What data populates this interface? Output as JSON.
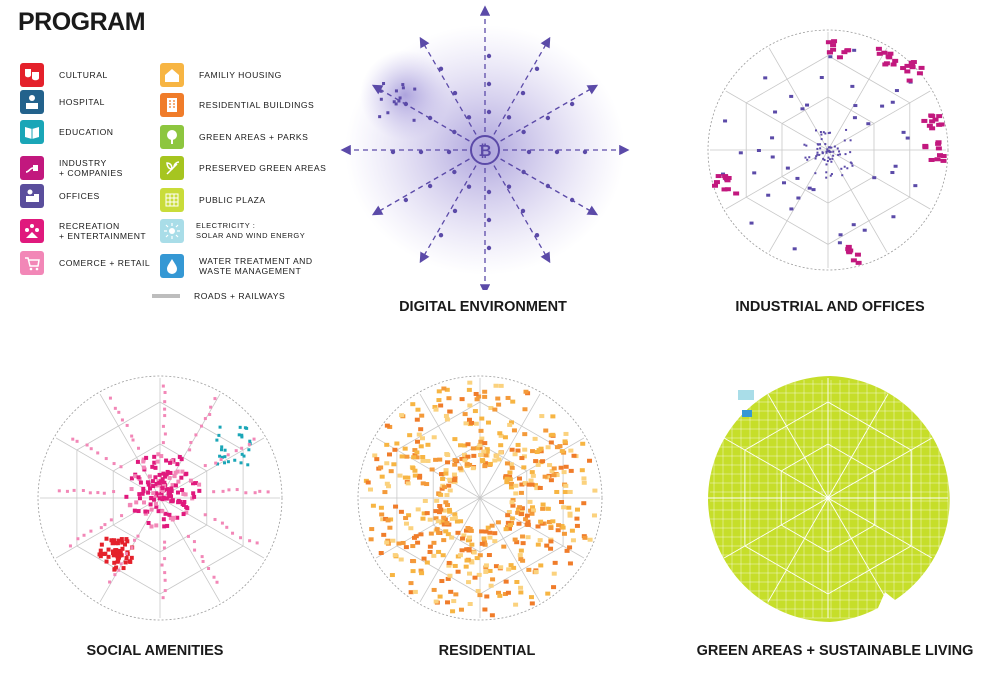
{
  "page": {
    "title": "PROGRAM"
  },
  "legend": {
    "items": [
      {
        "label": "CULTURAL",
        "icon": "theater-masks-icon",
        "color": "#e4212b"
      },
      {
        "label": "HOSPITAL",
        "icon": "hospital-icon",
        "color": "#23628c"
      },
      {
        "label": "EDUCATION",
        "icon": "book-icon",
        "color": "#1aa6b7"
      },
      {
        "label": "INDUSTRY\n+ COMPANIES",
        "icon": "plug-icon",
        "color": "#c2187e"
      },
      {
        "label": "OFFICES",
        "icon": "office-desk-icon",
        "color": "#5a4e9c"
      },
      {
        "label": "RECREATION\n+ ENTERTAINMENT",
        "icon": "people-group-icon",
        "color": "#e0197d"
      },
      {
        "label": "COMERCE + RETAIL",
        "icon": "shopping-cart-icon",
        "color": "#f287b7"
      },
      {
        "label": "FAMILIY HOUSING",
        "icon": "house-icon",
        "color": "#f7b543"
      },
      {
        "label": "RESIDENTIAL BUILDINGS",
        "icon": "building-icon",
        "color": "#f07c2a"
      },
      {
        "label": "GREEN AREAS + PARKS",
        "icon": "tree-icon",
        "color": "#8dc63f"
      },
      {
        "label": "PRESERVED GREEN AREAS",
        "icon": "plant-icon",
        "color": "#a6c520"
      },
      {
        "label": "PUBLIC PLAZA",
        "icon": "grid-icon",
        "color": "#c9dc3a"
      },
      {
        "label": "ELECTRICITY :\nSOLAR AND WIND ENERGY",
        "icon": "sun-icon",
        "color": "#a9dde8"
      },
      {
        "label": "WATER TREATMENT AND\nWASTE MANAGEMENT",
        "icon": "water-drop-icon",
        "color": "#3598d4"
      },
      {
        "label": "ROADS + RAILWAYS",
        "icon": "road-line",
        "color": "#bdbdbd"
      }
    ]
  },
  "diagrams": [
    {
      "title": "DIGITAL ENVIRONMENT",
      "key": "digital",
      "color": "#5b4aa8",
      "center_icon": "bitcoin-icon"
    },
    {
      "title": "INDUSTRIAL AND OFFICES",
      "key": "industrial",
      "color": "#c2187e"
    },
    {
      "title": "SOCIAL AMENITIES",
      "key": "social",
      "color": "#e0197d"
    },
    {
      "title": "RESIDENTIAL",
      "key": "residential",
      "color": "#f07c2a"
    },
    {
      "title": "GREEN AREAS + SUSTAINABLE LIVING",
      "key": "green",
      "color": "#c6de2a"
    }
  ]
}
